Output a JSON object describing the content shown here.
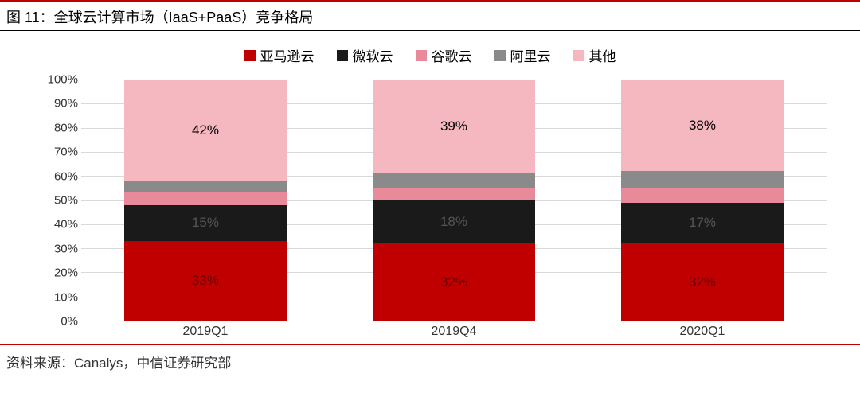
{
  "title": "图 11：全球云计算市场（IaaS+PaaS）竞争格局",
  "source": "资料来源：Canalys，中信证券研究部",
  "chart": {
    "type": "stacked-bar-100pct",
    "background_color": "#ffffff",
    "grid_color": "#d9d9d9",
    "axis_color": "#888888",
    "ylim": [
      0,
      100
    ],
    "ytick_step": 10,
    "ytick_suffix": "%",
    "label_fontsize": 15,
    "value_label_fontsize": 17,
    "bar_group_width_pct": 26,
    "bar_inner_padding_pct": 8,
    "series": [
      {
        "key": "aws",
        "label": "亚马逊云",
        "color": "#c00000",
        "show_label": true,
        "label_color": "#6b0000"
      },
      {
        "key": "azure",
        "label": "微软云",
        "color": "#1a1a1a",
        "show_label": true,
        "label_color": "#555555"
      },
      {
        "key": "gcp",
        "label": "谷歌云",
        "color": "#e88a9a",
        "show_label": false,
        "label_color": "#000000"
      },
      {
        "key": "ali",
        "label": "阿里云",
        "color": "#8a8a8a",
        "show_label": false,
        "label_color": "#000000"
      },
      {
        "key": "other",
        "label": "其他",
        "color": "#f6b8c0",
        "show_label": true,
        "label_color": "#000000"
      }
    ],
    "categories": [
      "2019Q1",
      "2019Q4",
      "2020Q1"
    ],
    "data": {
      "aws": [
        33,
        32,
        32
      ],
      "azure": [
        15,
        18,
        17
      ],
      "gcp": [
        5,
        5,
        6
      ],
      "ali": [
        5,
        6,
        7
      ],
      "other": [
        42,
        39,
        38
      ]
    },
    "title_rule_color": "#c00000",
    "title_underline_color": "#000000",
    "footer_rule_color": "#c00000"
  }
}
